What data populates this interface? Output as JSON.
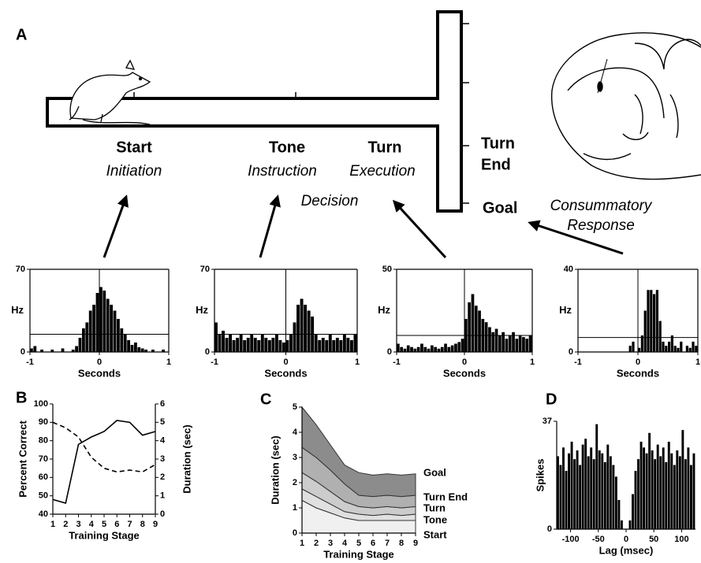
{
  "panel_labels": [
    "A",
    "B",
    "C",
    "D"
  ],
  "maze_labels": {
    "start": "Start",
    "initiation": "Initiation",
    "tone": "Tone",
    "instruction": "Instruction",
    "turn": "Turn",
    "execution": "Execution",
    "decision": "Decision",
    "turn_end": [
      "Turn",
      "End"
    ],
    "goal": "Goal",
    "consummatory": [
      "Consummatory",
      "Response"
    ]
  },
  "chart_data": [
    {
      "type": "histogram",
      "xlabel": "Seconds",
      "ylabel": "Hz",
      "color": "#000000",
      "bins": [
        -1,
        -0.95,
        -0.9,
        -0.85,
        -0.8,
        -0.75,
        -0.7,
        -0.65,
        -0.6,
        -0.55,
        -0.5,
        -0.45,
        -0.4,
        -0.35,
        -0.3,
        -0.25,
        -0.2,
        -0.15,
        -0.1,
        -0.05,
        0,
        0.05,
        0.1,
        0.15,
        0.2,
        0.25,
        0.3,
        0.35,
        0.4,
        0.45,
        0.5,
        0.55,
        0.6,
        0.65,
        0.7,
        0.75,
        0.8,
        0.85,
        0.9,
        0.95,
        1
      ],
      "values": [
        3,
        5,
        0,
        2,
        0,
        0,
        2,
        0,
        0,
        3,
        0,
        0,
        2,
        5,
        12,
        20,
        25,
        35,
        40,
        50,
        55,
        52,
        45,
        40,
        35,
        28,
        20,
        15,
        10,
        6,
        8,
        4,
        3,
        2,
        0,
        2,
        0,
        0,
        2,
        0
      ],
      "xlim": [
        -1,
        1
      ],
      "xticks": [
        -1,
        0,
        1
      ],
      "ylim": [
        0,
        70
      ],
      "yticks": [
        0,
        70
      ],
      "hline": 15,
      "vline": 0
    },
    {
      "type": "histogram",
      "xlabel": "Seconds",
      "ylabel": "Hz",
      "color": "#000000",
      "bins": [
        -1,
        -0.95,
        -0.9,
        -0.85,
        -0.8,
        -0.75,
        -0.7,
        -0.65,
        -0.6,
        -0.55,
        -0.5,
        -0.45,
        -0.4,
        -0.35,
        -0.3,
        -0.25,
        -0.2,
        -0.15,
        -0.1,
        -0.05,
        0,
        0.05,
        0.1,
        0.15,
        0.2,
        0.25,
        0.3,
        0.35,
        0.4,
        0.45,
        0.5,
        0.55,
        0.6,
        0.65,
        0.7,
        0.75,
        0.8,
        0.85,
        0.9,
        0.95,
        1
      ],
      "values": [
        25,
        15,
        18,
        12,
        15,
        10,
        12,
        15,
        10,
        12,
        15,
        12,
        10,
        15,
        12,
        10,
        12,
        15,
        10,
        8,
        10,
        15,
        25,
        40,
        45,
        40,
        35,
        30,
        15,
        10,
        12,
        10,
        15,
        10,
        12,
        10,
        15,
        12,
        10,
        15
      ],
      "xlim": [
        -1,
        1
      ],
      "xticks": [
        -1,
        0,
        1
      ],
      "ylim": [
        0,
        70
      ],
      "yticks": [
        0,
        70
      ],
      "hline": 15,
      "vline": 0
    },
    {
      "type": "histogram",
      "xlabel": "Seconds",
      "ylabel": "Hz",
      "color": "#000000",
      "bins": [
        -1,
        -0.95,
        -0.9,
        -0.85,
        -0.8,
        -0.75,
        -0.7,
        -0.65,
        -0.6,
        -0.55,
        -0.5,
        -0.45,
        -0.4,
        -0.35,
        -0.3,
        -0.25,
        -0.2,
        -0.15,
        -0.1,
        -0.05,
        0,
        0.05,
        0.1,
        0.15,
        0.2,
        0.25,
        0.3,
        0.35,
        0.4,
        0.45,
        0.5,
        0.55,
        0.6,
        0.65,
        0.7,
        0.75,
        0.8,
        0.85,
        0.9,
        0.95,
        1
      ],
      "values": [
        5,
        3,
        2,
        4,
        3,
        2,
        3,
        5,
        3,
        2,
        4,
        3,
        2,
        3,
        5,
        3,
        4,
        5,
        6,
        8,
        20,
        30,
        35,
        28,
        25,
        20,
        18,
        15,
        12,
        14,
        10,
        12,
        8,
        10,
        12,
        8,
        10,
        9,
        8,
        10
      ],
      "xlim": [
        -1,
        1
      ],
      "xticks": [
        -1,
        0,
        1
      ],
      "ylim": [
        0,
        50
      ],
      "yticks": [
        0,
        50
      ],
      "hline": 10,
      "vline": 0
    },
    {
      "type": "histogram",
      "xlabel": "Seconds",
      "ylabel": "Hz",
      "color": "#000000",
      "bins": [
        -1,
        -0.95,
        -0.9,
        -0.85,
        -0.8,
        -0.75,
        -0.7,
        -0.65,
        -0.6,
        -0.55,
        -0.5,
        -0.45,
        -0.4,
        -0.35,
        -0.3,
        -0.25,
        -0.2,
        -0.15,
        -0.1,
        -0.05,
        0,
        0.05,
        0.1,
        0.15,
        0.2,
        0.25,
        0.3,
        0.35,
        0.4,
        0.45,
        0.5,
        0.55,
        0.6,
        0.65,
        0.7,
        0.75,
        0.8,
        0.85,
        0.9,
        0.95,
        1
      ],
      "values": [
        0,
        0,
        0,
        0,
        0,
        0,
        0,
        0,
        0,
        0,
        0,
        0,
        0,
        0,
        0,
        0,
        0,
        3,
        5,
        0,
        2,
        8,
        20,
        30,
        30,
        28,
        30,
        15,
        5,
        3,
        5,
        8,
        3,
        2,
        5,
        0,
        3,
        2,
        5,
        3
      ],
      "xlim": [
        -1,
        1
      ],
      "xticks": [
        -1,
        0,
        1
      ],
      "ylim": [
        0,
        40
      ],
      "yticks": [
        0,
        40
      ],
      "hline": 7,
      "vline": 0
    },
    {
      "type": "line",
      "xlabel": "Training Stage",
      "ylabel": "Percent Correct",
      "y2label": "Duration (sec)",
      "x": [
        1,
        2,
        3,
        4,
        5,
        6,
        7,
        8,
        9
      ],
      "series": [
        {
          "color": "#000000",
          "linestyle": "solid",
          "values": [
            48,
            46,
            78,
            82,
            85,
            91,
            90,
            83,
            85
          ]
        },
        {
          "color": "#000000",
          "linestyle": "dashed",
          "axis": "y2",
          "values": [
            5.0,
            4.7,
            4.2,
            3.1,
            2.5,
            2.3,
            2.4,
            2.3,
            2.7
          ]
        }
      ],
      "xlim": [
        1,
        9
      ],
      "xticks": [
        1,
        2,
        3,
        4,
        5,
        6,
        7,
        8,
        9
      ],
      "ylim": [
        40,
        100
      ],
      "yticks": [
        40,
        50,
        60,
        70,
        80,
        90,
        100
      ],
      "y2lim": [
        0,
        6
      ],
      "y2ticks": [
        0,
        1,
        2,
        3,
        4,
        5,
        6
      ]
    },
    {
      "type": "area",
      "stacked": true,
      "xlabel": "Training Stage",
      "ylabel": "Duration (sec)",
      "x": [
        1,
        2,
        3,
        4,
        5,
        6,
        7,
        8,
        9
      ],
      "series": [
        {
          "name": "Start",
          "color": "#f0f0f0",
          "values": [
            1.3,
            1.0,
            0.8,
            0.6,
            0.5,
            0.5,
            0.5,
            0.5,
            0.5
          ]
        },
        {
          "name": "Tone",
          "color": "#e0e0e0",
          "values": [
            0.45,
            0.45,
            0.35,
            0.25,
            0.25,
            0.2,
            0.25,
            0.2,
            0.25
          ]
        },
        {
          "name": "Turn",
          "color": "#cccccc",
          "values": [
            0.65,
            0.6,
            0.5,
            0.4,
            0.3,
            0.3,
            0.3,
            0.3,
            0.3
          ]
        },
        {
          "name": "Turn End",
          "color": "#b0b0b0",
          "values": [
            1.0,
            0.95,
            0.85,
            0.7,
            0.45,
            0.45,
            0.45,
            0.45,
            0.45
          ]
        },
        {
          "name": "Goal",
          "color": "#8c8c8c",
          "values": [
            1.6,
            1.3,
            1.0,
            0.75,
            0.9,
            0.85,
            0.85,
            0.85,
            0.85
          ]
        }
      ],
      "xlim": [
        1,
        9
      ],
      "xticks": [
        1,
        2,
        3,
        4,
        5,
        6,
        7,
        8,
        9
      ],
      "ylim": [
        0,
        5
      ],
      "yticks": [
        0,
        1,
        2,
        3,
        4,
        5
      ]
    },
    {
      "type": "histogram",
      "xlabel": "Lag (msec)",
      "ylabel": "Spikes",
      "color": "#000000",
      "bins": [
        -125,
        -120,
        -115,
        -110,
        -105,
        -100,
        -95,
        -90,
        -85,
        -80,
        -75,
        -70,
        -65,
        -60,
        -55,
        -50,
        -45,
        -40,
        -35,
        -30,
        -25,
        -20,
        -15,
        -10,
        -5,
        0,
        5,
        10,
        15,
        20,
        25,
        30,
        35,
        40,
        45,
        50,
        55,
        60,
        65,
        70,
        75,
        80,
        85,
        90,
        95,
        100,
        105,
        110,
        115,
        120,
        125
      ],
      "values": [
        25,
        22,
        28,
        20,
        26,
        30,
        24,
        27,
        22,
        29,
        31,
        25,
        28,
        24,
        36,
        27,
        26,
        23,
        29,
        25,
        22,
        18,
        10,
        3,
        0,
        0,
        3,
        12,
        20,
        24,
        30,
        28,
        26,
        33,
        27,
        24,
        29,
        25,
        28,
        23,
        30,
        26,
        22,
        27,
        25,
        34,
        24,
        28,
        22,
        26
      ],
      "xlim": [
        -125,
        125
      ],
      "xticks": [
        -100,
        -50,
        0,
        50,
        100
      ],
      "ylim": [
        0,
        37
      ],
      "yticks": [
        0,
        37
      ]
    }
  ]
}
